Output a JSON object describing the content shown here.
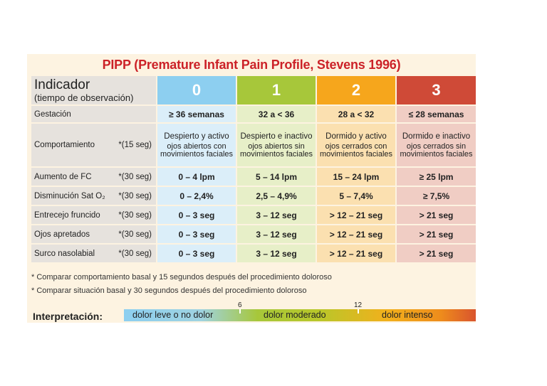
{
  "title": "PIPP (Premature Infant Pain Profile, Stevens 1996)",
  "header": {
    "indicator": "Indicador",
    "observation": "(tiempo de observación)",
    "scores": [
      "0",
      "1",
      "2",
      "3"
    ]
  },
  "rows": [
    {
      "label": "Gestación",
      "note": "",
      "values": [
        "≥ 36 semanas",
        "32 a < 36",
        "28 a < 32",
        "≤ 28 semanas"
      ]
    },
    {
      "label": "Comportamiento",
      "note": "*(15 seg)",
      "values": [
        {
          "a": "Despierto y activo",
          "b": "ojos abiertos con movimientos faciales"
        },
        {
          "a": "Despierto e inactivo",
          "b": "ojos abiertos sin movimientos faciales"
        },
        {
          "a": "Dormido y activo",
          "b": "ojos cerrados con movimientos faciales"
        },
        {
          "a": "Dormido e inactivo",
          "b": "ojos cerrados sin movimientos faciales"
        }
      ]
    },
    {
      "label": "Aumento de FC",
      "note": "*(30 seg)",
      "values": [
        "0 – 4 lpm",
        "5 – 14 lpm",
        "15 – 24 lpm",
        "≥ 25 lpm"
      ]
    },
    {
      "label": "Disminución Sat O₂",
      "note": "*(30 seg)",
      "values": [
        "0 – 2,4%",
        "2,5 – 4,9%",
        "5 – 7,4%",
        "≥ 7,5%"
      ]
    },
    {
      "label": "Entrecejo fruncido",
      "note": "*(30 seg)",
      "values": [
        "0 – 3 seg",
        "3 – 12 seg",
        "> 12 – 21 seg",
        "> 21 seg"
      ]
    },
    {
      "label": "Ojos apretados",
      "note": "*(30 seg)",
      "values": [
        "0 – 3 seg",
        "3 – 12 seg",
        "> 12 – 21 seg",
        "> 21 seg"
      ]
    },
    {
      "label": "Surco nasolabial",
      "note": "*(30 seg)",
      "values": [
        "0 – 3 seg",
        "3 – 12 seg",
        "> 12 – 21 seg",
        "> 21 seg"
      ]
    }
  ],
  "notes": [
    "* Comparar comportamiento basal y 15 segundos después del procedimiento doloroso",
    "* Comparar situación basal y 30 segundos después del procedimiento doloroso"
  ],
  "interpretation": {
    "label": "Interpretación:",
    "levels": [
      "dolor leve o no dolor",
      "dolor moderado",
      "dolor intenso"
    ],
    "thresholds": [
      "6",
      "12"
    ]
  },
  "colors": {
    "title": "#cc2228",
    "score0": "#8dcff0",
    "score1": "#a7c73a",
    "score2": "#f6a61c",
    "score3": "#cf4a37"
  }
}
